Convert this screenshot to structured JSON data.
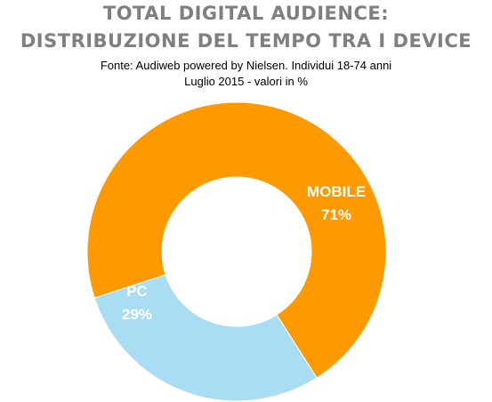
{
  "header": {
    "title_line1": "TOTAL DIGITAL AUDIENCE:",
    "title_line2": "DISTRIBUZIONE DEL TEMPO TRA I DEVICE",
    "subtitle_line1": "Fonte: Audiweb powered by Nielsen. Individui 18-74 anni",
    "subtitle_line2": "Luglio 2015 - valori in %"
  },
  "chart_data": {
    "type": "pie",
    "variant": "donut",
    "categories": [
      "MOBILE",
      "PC"
    ],
    "values": [
      71,
      29
    ],
    "value_labels": [
      "71%",
      "29%"
    ],
    "colors": [
      "#ff9900",
      "#a9ddf3"
    ],
    "title": "TOTAL DIGITAL AUDIENCE: DISTRIBUZIONE DEL TEMPO TRA I DEVICE",
    "unit": "%"
  }
}
